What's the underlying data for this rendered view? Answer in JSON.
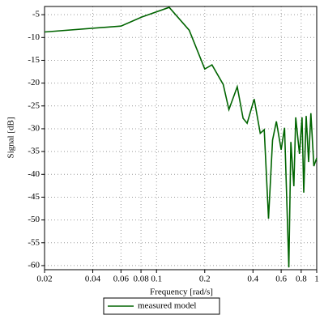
{
  "chart_data": {
    "type": "line",
    "x_label": "Frequency [rad/s]",
    "y_label": "Signal [dB]",
    "log_x": true,
    "grid": true,
    "legend_position": "bottom",
    "xlim": [
      0.02,
      1
    ],
    "xticks": [
      0.02,
      0.04,
      0.06,
      0.08,
      0.1,
      0.2,
      0.4,
      0.6,
      0.8,
      1
    ],
    "ylim": [
      -60.9,
      -3.2
    ],
    "yticks": [
      -5,
      -10,
      -15,
      -20,
      -25,
      -30,
      -35,
      -40,
      -45,
      -50,
      -55,
      -60
    ],
    "x": [
      0.02,
      0.06,
      0.081,
      0.12,
      0.16,
      0.2,
      0.222,
      0.261,
      0.283,
      0.319,
      0.347,
      0.368,
      0.407,
      0.444,
      0.47,
      0.5,
      0.53,
      0.56,
      0.6,
      0.63,
      0.67,
      0.69,
      0.72,
      0.74,
      0.78,
      0.81,
      0.83,
      0.86,
      0.89,
      0.92,
      0.96,
      1.0
    ],
    "series": [
      {
        "name": "measured model",
        "color": "#006400",
        "values": [
          -8.8,
          -7.5,
          -5.5,
          -3.4,
          -8.4,
          -16.9,
          -16,
          -20.3,
          -25.8,
          -20.8,
          -27.7,
          -28.8,
          -23.5,
          -31,
          -30.2,
          -49.7,
          -32.5,
          -28.4,
          -34.6,
          -29.8,
          -60.4,
          -32.9,
          -42.6,
          -27.5,
          -35.5,
          -27.5,
          -44,
          -27.2,
          -37.3,
          -26.6,
          -38.2,
          -36.4
        ]
      }
    ]
  }
}
